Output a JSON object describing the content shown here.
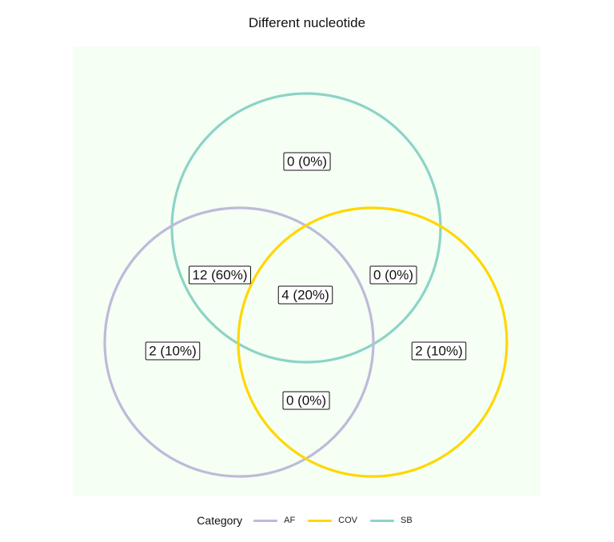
{
  "title": "Different nucleotide",
  "legend": {
    "title": "Category",
    "items": [
      {
        "label": "AF",
        "color": "#BEBADA"
      },
      {
        "label": "COV",
        "color": "#FFD700"
      },
      {
        "label": "SB",
        "color": "#8DD3C7"
      }
    ]
  },
  "background_color": "#F5FFF3",
  "sets": [
    {
      "name": "AF",
      "color": "#BEBADA"
    },
    {
      "name": "COV",
      "color": "#FFD700"
    },
    {
      "name": "SB",
      "color": "#8DD3C7"
    }
  ],
  "regions": [
    {
      "id": "SB-only",
      "sets": [
        "SB"
      ],
      "label": "0 (0%)"
    },
    {
      "id": "AF-SB",
      "sets": [
        "AF",
        "SB"
      ],
      "label": "12 (60%)"
    },
    {
      "id": "COV-SB",
      "sets": [
        "COV",
        "SB"
      ],
      "label": "0 (0%)"
    },
    {
      "id": "AF-COV-SB",
      "sets": [
        "AF",
        "COV",
        "SB"
      ],
      "label": "4 (20%)"
    },
    {
      "id": "AF-only",
      "sets": [
        "AF"
      ],
      "label": "2 (10%)"
    },
    {
      "id": "COV-only",
      "sets": [
        "COV"
      ],
      "label": "2 (10%)"
    },
    {
      "id": "AF-COV",
      "sets": [
        "AF",
        "COV"
      ],
      "label": "0 (0%)"
    }
  ]
}
